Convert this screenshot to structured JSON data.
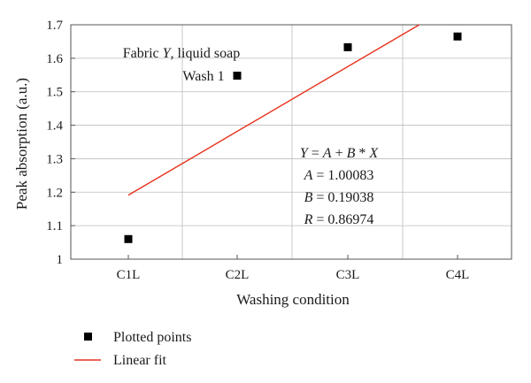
{
  "chart_data": {
    "type": "scatter",
    "categories": [
      "C1L",
      "C2L",
      "C3L",
      "C4L"
    ],
    "series": [
      {
        "name": "Plotted points",
        "kind": "points",
        "values": [
          1.06,
          1.548,
          1.633,
          1.665
        ],
        "color": "#000000"
      },
      {
        "name": "Linear fit",
        "kind": "line",
        "intercept": 1.00083,
        "slope": 0.19038,
        "color": "#e8321e"
      }
    ],
    "xlabel": "Washing condition",
    "ylabel": "Peak absorption (a.u.)",
    "ylim": [
      1,
      1.7
    ],
    "yticks": [
      "1",
      "1.1",
      "1.2",
      "1.3",
      "1.4",
      "1.5",
      "1.6",
      "1.7"
    ],
    "grid": true,
    "legend_position": "bottom-left",
    "annotations": {
      "title_line1_prefix": "Fabric ",
      "title_line1_var": "Y",
      "title_line1_suffix": ", liquid soap",
      "title_line2": "Wash 1",
      "eq_y": "Y",
      "eq_a": "A",
      "eq_b": "B",
      "eq_x": "X",
      "eq_middle": " = ",
      "eq_plus": " + ",
      "eq_times": " * ",
      "a_value": "1.00083",
      "b_value": "0.19038",
      "r_label": "R",
      "r_value": "0.86974"
    }
  }
}
